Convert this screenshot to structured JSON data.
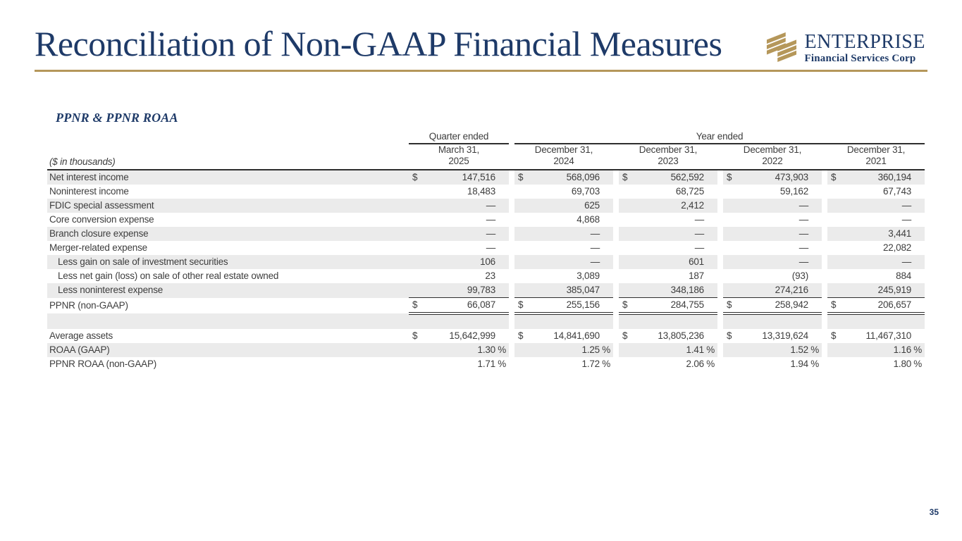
{
  "slide": {
    "title": "Reconciliation of Non-GAAP Financial Measures",
    "section_heading": "PPNR & PPNR ROAA",
    "units_label": "($ in thousands)",
    "page_number": "35"
  },
  "logo": {
    "name": "ENTERPRISE",
    "subtitle": "Financial Services Corp"
  },
  "colors": {
    "navy": "#1e3a68",
    "gold": "#b5975a",
    "stripe": "#ebebeb",
    "text": "#3e3e3e",
    "rule": "#2e2e2e"
  },
  "table": {
    "period_groups": [
      {
        "label": "Quarter ended",
        "columns": 1
      },
      {
        "label": "Year ended",
        "columns": 4
      }
    ],
    "columns": [
      {
        "line1": "March 31,",
        "line2": "2025"
      },
      {
        "line1": "December 31,",
        "line2": "2024"
      },
      {
        "line1": "December 31,",
        "line2": "2023"
      },
      {
        "line1": "December 31,",
        "line2": "2022"
      },
      {
        "line1": "December 31,",
        "line2": "2021"
      }
    ],
    "rows": [
      {
        "label": "Net interest income",
        "dollar": true,
        "shaded": true,
        "values": [
          "147,516",
          "568,096",
          "562,592",
          "473,903",
          "360,194"
        ]
      },
      {
        "label": "Noninterest income",
        "values": [
          "18,483",
          "69,703",
          "68,725",
          "59,162",
          "67,743"
        ]
      },
      {
        "label": "FDIC special assessment",
        "shaded": true,
        "values": [
          "—",
          "625",
          "2,412",
          "—",
          "—"
        ]
      },
      {
        "label": "Core conversion expense",
        "values": [
          "—",
          "4,868",
          "—",
          "—",
          "—"
        ]
      },
      {
        "label": "Branch closure expense",
        "shaded": true,
        "values": [
          "—",
          "—",
          "—",
          "—",
          "3,441"
        ]
      },
      {
        "label": "Merger-related expense",
        "values": [
          "—",
          "—",
          "—",
          "—",
          "22,082"
        ]
      },
      {
        "label": "Less gain on sale of investment securities",
        "indent": true,
        "shaded": true,
        "values": [
          "106",
          "—",
          "601",
          "—",
          "—"
        ]
      },
      {
        "label": "Less net gain (loss) on sale of other real estate owned",
        "indent": true,
        "values": [
          "23",
          "3,089",
          "187",
          "(93)",
          "884"
        ]
      },
      {
        "label": "Less noninterest expense",
        "indent": true,
        "shaded": true,
        "values": [
          "99,783",
          "385,047",
          "348,186",
          "274,216",
          "245,919"
        ]
      },
      {
        "label": "PPNR (non-GAAP)",
        "dollar": true,
        "total": true,
        "values": [
          "66,087",
          "255,156",
          "284,755",
          "258,942",
          "206,657"
        ]
      },
      {
        "label": "",
        "spacer": true,
        "shaded": true,
        "values": [
          "",
          "",
          "",
          "",
          ""
        ]
      },
      {
        "label": "Average assets",
        "dollar": true,
        "values": [
          "15,642,999",
          "14,841,690",
          "13,805,236",
          "13,319,624",
          "11,467,310"
        ]
      },
      {
        "label": "ROAA (GAAP)",
        "percent": true,
        "shaded": true,
        "values": [
          "1.30",
          "1.25",
          "1.41",
          "1.52",
          "1.16"
        ]
      },
      {
        "label": "PPNR ROAA (non-GAAP)",
        "percent": true,
        "values": [
          "1.71",
          "1.72",
          "2.06",
          "1.94",
          "1.80"
        ]
      }
    ]
  }
}
